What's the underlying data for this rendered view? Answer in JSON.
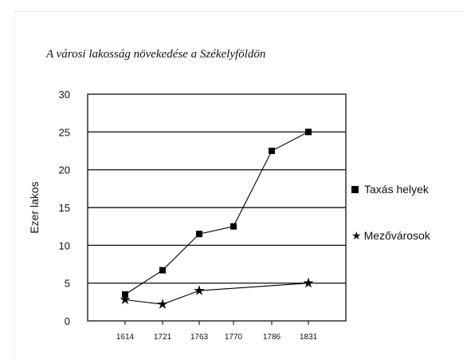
{
  "chart_data": {
    "type": "line",
    "title": "A városi lakosság növekedése a Székelyföldön",
    "xlabel": "",
    "ylabel": "Ezer lakos",
    "categories": [
      "1614",
      "1721",
      "1763",
      "1770",
      "1786",
      "1831"
    ],
    "ylim": [
      0,
      30
    ],
    "yticks": [
      0,
      5,
      10,
      15,
      20,
      25,
      30
    ],
    "grid": "horizontal",
    "legend_position": "right",
    "series": [
      {
        "name": "Taxás helyek",
        "marker": "square",
        "values": [
          3.5,
          6.7,
          11.5,
          12.5,
          22.5,
          25
        ],
        "color": "#000000"
      },
      {
        "name": "Mezővárosok",
        "marker": "star",
        "values": [
          2.8,
          2.2,
          4.0,
          null,
          null,
          5.0
        ],
        "color": "#000000"
      }
    ]
  }
}
